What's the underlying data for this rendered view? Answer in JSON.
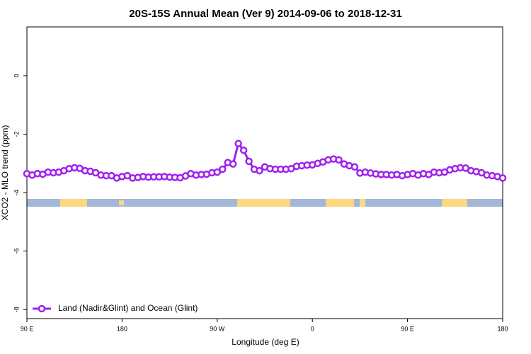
{
  "chart_data": {
    "type": "line",
    "title": "20S-15S Annual Mean (Ver 9)   2014-09-06 to 2018-12-31",
    "x_label": "Longitude (deg E)",
    "y_label": "XCO2 - MLO trend (ppm)",
    "xlim": [
      90,
      540
    ],
    "ylim": [
      -8.31,
      1.67
    ],
    "xticks": [
      {
        "value": 90,
        "label": "90 E"
      },
      180,
      {
        "value": 270,
        "label": "90 W"
      },
      {
        "value": 360,
        "label": "0"
      },
      {
        "value": 450,
        "label": "90 E"
      },
      {
        "value": 540,
        "label": "180"
      }
    ],
    "yticks": [
      0,
      -2,
      -4,
      -6,
      -8
    ],
    "grid": false,
    "legend": "bottom-left",
    "x": [
      90,
      95,
      100,
      105,
      110,
      115,
      120,
      125,
      130,
      135,
      140,
      145,
      150,
      155,
      160,
      165,
      170,
      175,
      180,
      185,
      190,
      195,
      200,
      205,
      210,
      215,
      220,
      225,
      230,
      235,
      240,
      245,
      250,
      255,
      260,
      265,
      270,
      275,
      280,
      285,
      290,
      295,
      300,
      305,
      310,
      315,
      320,
      325,
      330,
      335,
      340,
      345,
      350,
      355,
      360,
      365,
      370,
      375,
      380,
      385,
      390,
      395,
      400,
      405,
      410,
      415,
      420,
      425,
      430,
      435,
      440,
      445,
      450,
      455,
      460,
      465,
      470,
      475,
      480,
      485,
      490,
      495,
      500,
      505,
      510,
      515,
      520,
      525,
      530,
      535,
      540
    ],
    "series": [
      {
        "name": "Land (Nadir&Glint) and Ocean (Glint)",
        "color": "#a020f0",
        "values": [
          -3.35,
          -3.4,
          -3.35,
          -3.37,
          -3.3,
          -3.32,
          -3.3,
          -3.25,
          -3.18,
          -3.15,
          -3.17,
          -3.25,
          -3.27,
          -3.32,
          -3.4,
          -3.42,
          -3.42,
          -3.5,
          -3.45,
          -3.42,
          -3.5,
          -3.48,
          -3.45,
          -3.47,
          -3.46,
          -3.46,
          -3.45,
          -3.47,
          -3.48,
          -3.49,
          -3.43,
          -3.35,
          -3.4,
          -3.38,
          -3.37,
          -3.32,
          -3.3,
          -3.2,
          -2.97,
          -3.02,
          -2.32,
          -2.55,
          -2.93,
          -3.2,
          -3.25,
          -3.12,
          -3.18,
          -3.2,
          -3.2,
          -3.2,
          -3.18,
          -3.1,
          -3.08,
          -3.06,
          -3.05,
          -3.0,
          -2.95,
          -2.88,
          -2.85,
          -2.88,
          -3.02,
          -3.08,
          -3.12,
          -3.33,
          -3.3,
          -3.33,
          -3.36,
          -3.38,
          -3.38,
          -3.4,
          -3.38,
          -3.42,
          -3.38,
          -3.35,
          -3.4,
          -3.35,
          -3.38,
          -3.3,
          -3.32,
          -3.3,
          -3.22,
          -3.18,
          -3.15,
          -3.16,
          -3.25,
          -3.28,
          -3.32,
          -3.4,
          -3.42,
          -3.45,
          -3.5
        ]
      }
    ]
  }
}
